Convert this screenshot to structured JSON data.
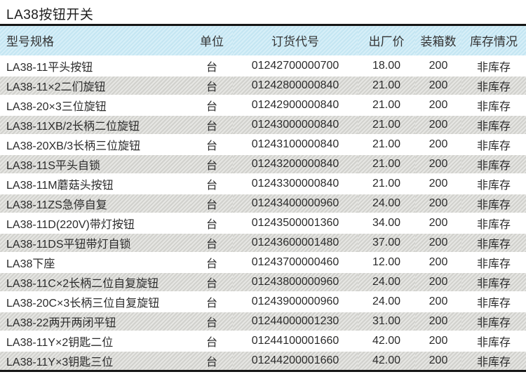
{
  "title": "LA38按钮开关",
  "colors": {
    "header_bg": "#c8e9f5",
    "stripe_bg": "#d7d7d2",
    "rule": "#161616",
    "text": "#2b2b2b"
  },
  "table": {
    "headers": [
      "型号规格",
      "单位",
      "订货代号",
      "出厂价",
      "装箱数",
      "库存情况"
    ],
    "rows": [
      [
        "LA38-11平头按钮",
        "台",
        "01242700000700",
        "18.00",
        "200",
        "非库存"
      ],
      [
        "LA38-11×2二们旋钮",
        "台",
        "01242800000840",
        "21.00",
        "200",
        "非库存"
      ],
      [
        "LA38-20×3三位旋钮",
        "台",
        "01242900000840",
        "21.00",
        "200",
        "非库存"
      ],
      [
        "LA38-11XB/2长柄二位旋钮",
        "台",
        "01243000000840",
        "21.00",
        "200",
        "非库存"
      ],
      [
        "LA38-20XB/3长柄三位旋钮",
        "台",
        "01243100000840",
        "21.00",
        "200",
        "非库存"
      ],
      [
        "LA38-11S平头自锁",
        "台",
        "01243200000840",
        "21.00",
        "200",
        "非库存"
      ],
      [
        "LA38-11M蘑菇头按钮",
        "台",
        "01243300000840",
        "21.00",
        "200",
        "非库存"
      ],
      [
        "LA38-11ZS急停自复",
        "台",
        "01243400000960",
        "24.00",
        "200",
        "非库存"
      ],
      [
        "LA38-11D(220V)带灯按钮",
        "台",
        "01243500001360",
        "34.00",
        "200",
        "非库存"
      ],
      [
        "LA38-11DS平钮带灯自锁",
        "台",
        "01243600001480",
        "37.00",
        "200",
        "非库存"
      ],
      [
        "LA38下座",
        "台",
        "01243700000460",
        "12.00",
        "200",
        "非库存"
      ],
      [
        "LA38-11C×2长柄二位自复旋钮",
        "台",
        "01243800000960",
        "24.00",
        "200",
        "非库存"
      ],
      [
        "LA38-20C×3长柄三位自复旋钮",
        "台",
        "01243900000960",
        "24.00",
        "200",
        "非库存"
      ],
      [
        "LA38-22两开两闭平钮",
        "台",
        "01244000001230",
        "31.00",
        "200",
        "非库存"
      ],
      [
        "LA38-11Y×2钥匙二位",
        "台",
        "01244100001660",
        "42.00",
        "200",
        "非库存"
      ],
      [
        "LA38-11Y×3钥匙三位",
        "台",
        "01244200001660",
        "42.00",
        "200",
        "非库存"
      ]
    ]
  }
}
